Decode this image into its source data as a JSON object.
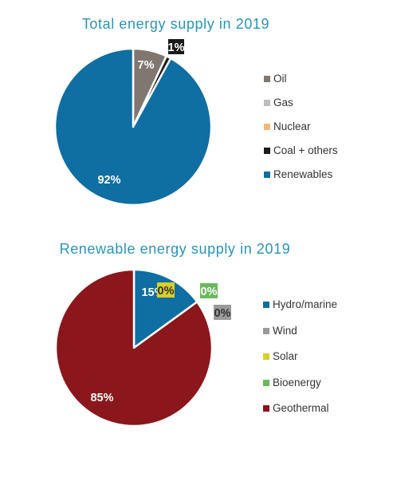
{
  "chart_data": [
    {
      "type": "pie",
      "title": "Total energy supply in 2019",
      "legend_position": "right",
      "categories": [
        "Oil",
        "Gas",
        "Nuclear",
        "Coal + others",
        "Renewables"
      ],
      "values": [
        7,
        0,
        0,
        1,
        92
      ],
      "value_labels": [
        "7%",
        "",
        "",
        "1%",
        "92%"
      ],
      "colors": [
        "#7f7770",
        "#bcbcbc",
        "#f5b67a",
        "#1a1a1a",
        "#0f6ea2"
      ]
    },
    {
      "type": "pie",
      "title": "Renewable energy supply in 2019",
      "legend_position": "right",
      "categories": [
        "Hydro/marine",
        "Wind",
        "Solar",
        "Bioenergy",
        "Geothermal"
      ],
      "values": [
        15,
        0,
        0,
        0,
        85
      ],
      "value_labels": [
        "15%",
        "0%",
        "0%",
        "0%",
        "85%"
      ],
      "colors": [
        "#0f6ea2",
        "#9a9a9a",
        "#d8cf2a",
        "#6ab95a",
        "#8b161b"
      ]
    }
  ]
}
